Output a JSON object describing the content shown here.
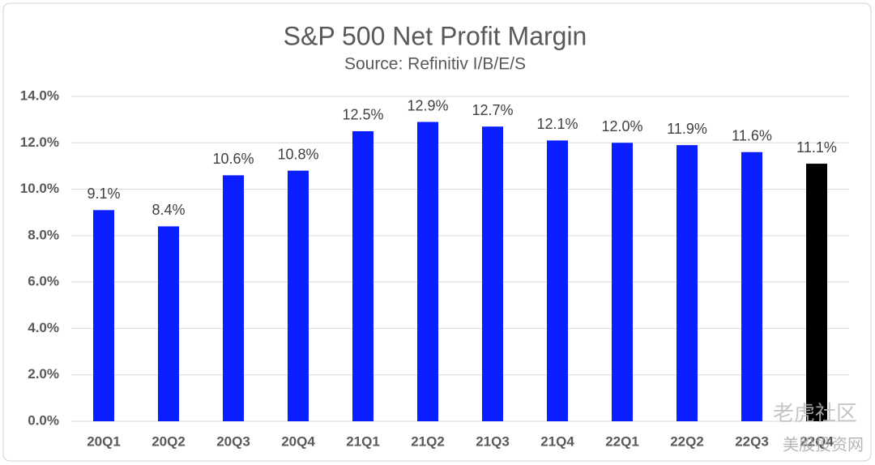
{
  "chart_data": {
    "type": "bar",
    "title": "S&P 500 Net Profit Margin",
    "subtitle": "Source: Refinitiv I/B/E/S",
    "categories": [
      "20Q1",
      "20Q2",
      "20Q3",
      "20Q4",
      "21Q1",
      "21Q2",
      "21Q3",
      "21Q4",
      "22Q1",
      "22Q2",
      "22Q3",
      "22Q4"
    ],
    "values": [
      9.1,
      8.4,
      10.6,
      10.8,
      12.5,
      12.9,
      12.7,
      12.1,
      12.0,
      11.9,
      11.6,
      11.1
    ],
    "value_labels": [
      "9.1%",
      "8.4%",
      "10.6%",
      "10.8%",
      "12.5%",
      "12.9%",
      "12.7%",
      "12.1%",
      "12.0%",
      "11.9%",
      "11.6%",
      "11.1%"
    ],
    "colors": [
      "#0a1eff",
      "#0a1eff",
      "#0a1eff",
      "#0a1eff",
      "#0a1eff",
      "#0a1eff",
      "#0a1eff",
      "#0a1eff",
      "#0a1eff",
      "#0a1eff",
      "#0a1eff",
      "#000000"
    ],
    "ylim": [
      0,
      14
    ],
    "yticks": [
      {
        "value": 0,
        "label": "0.0%"
      },
      {
        "value": 2,
        "label": "2.0%"
      },
      {
        "value": 4,
        "label": "4.0%"
      },
      {
        "value": 6,
        "label": "6.0%"
      },
      {
        "value": 8,
        "label": "8.0%"
      },
      {
        "value": 10,
        "label": "10.0%"
      },
      {
        "value": 12,
        "label": "12.0%"
      },
      {
        "value": 14,
        "label": "14.0%"
      }
    ],
    "grid": true,
    "watermarks": [
      "老虎社区",
      "美股投资网"
    ]
  }
}
